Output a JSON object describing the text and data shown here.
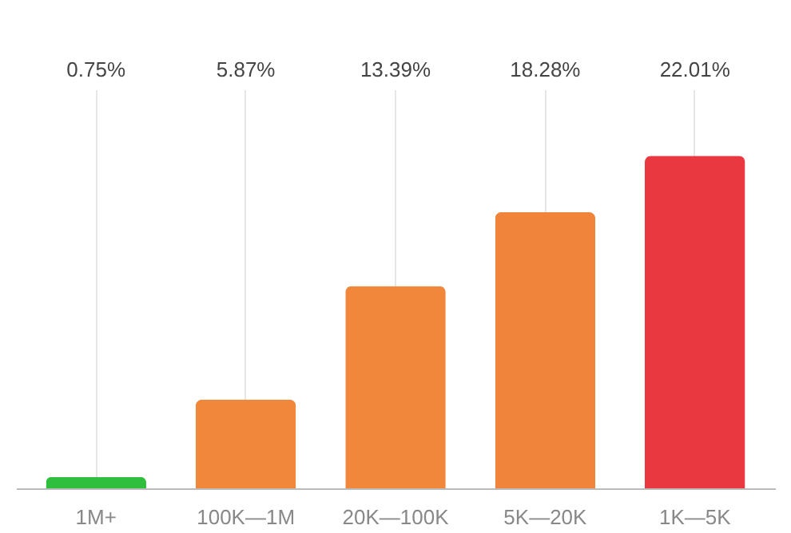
{
  "chart_data": {
    "type": "bar",
    "categories": [
      "1M+",
      "100K—1M",
      "20K—100K",
      "5K—20K",
      "1K—5K"
    ],
    "values": [
      0.75,
      5.87,
      13.39,
      18.28,
      22.01
    ],
    "colors": [
      "#2fbf3c",
      "#f0873a",
      "#f0873a",
      "#f0843a",
      "#e9383f"
    ],
    "value_labels": [
      "0.75%",
      "5.87%",
      "13.39%",
      "18.28%",
      "22.01%"
    ],
    "grid": "x"
  }
}
